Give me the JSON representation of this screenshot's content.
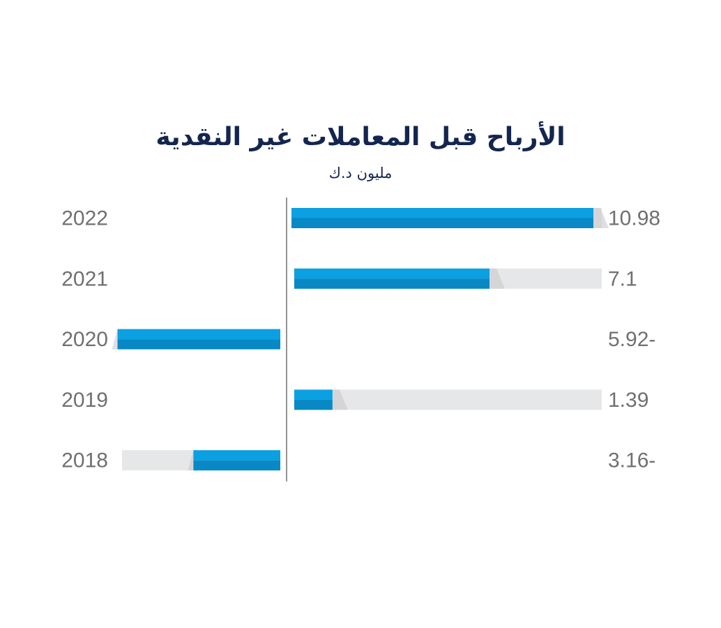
{
  "chart_data": {
    "type": "bar",
    "orientation": "horizontal",
    "title": "الأرباح قبل المعاملات غير النقدية",
    "unit": "مليون د.ك",
    "categories": [
      "2022",
      "2021",
      "2020",
      "2019",
      "2018"
    ],
    "values": [
      10.98,
      7.1,
      -5.92,
      1.39,
      -3.16
    ],
    "value_labels": [
      "10.98",
      "7.1",
      "5.92-",
      "1.39",
      "3.16-"
    ],
    "colors": {
      "bar_top": "#0aa0e2",
      "bar_bottom": "#0888c4",
      "track": "#e6e7e9",
      "axis": "#707070",
      "text": "#707070",
      "title": "#14264f"
    }
  }
}
